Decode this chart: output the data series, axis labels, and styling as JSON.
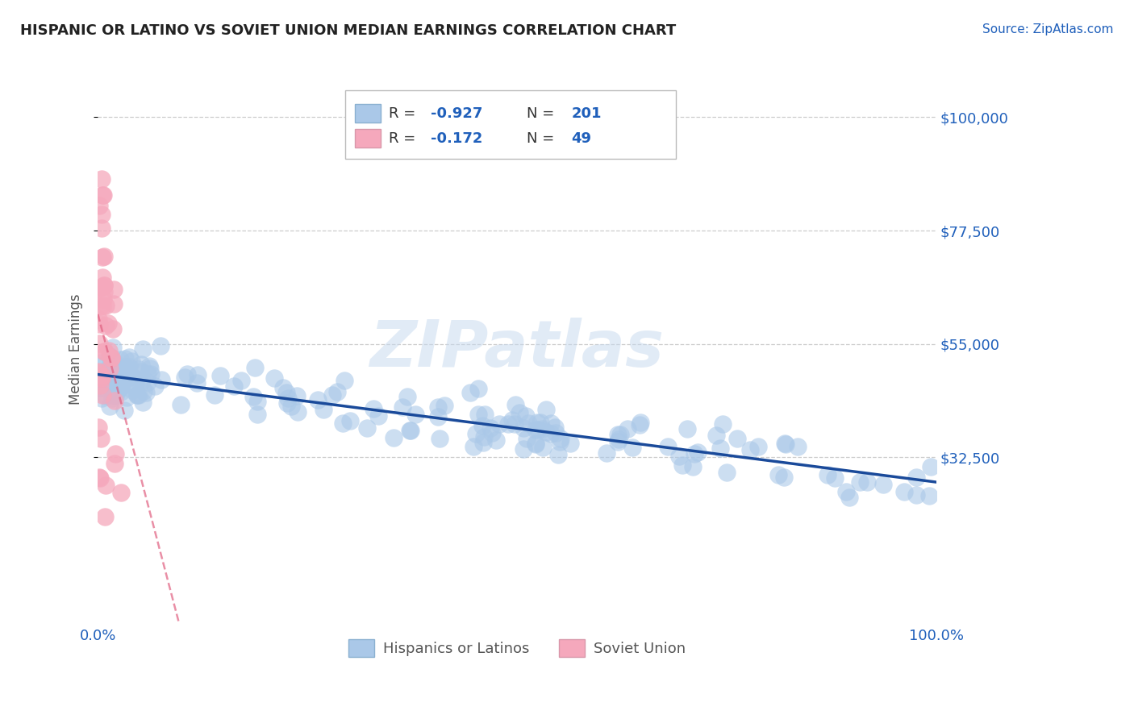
{
  "title": "HISPANIC OR LATINO VS SOVIET UNION MEDIAN EARNINGS CORRELATION CHART",
  "source": "Source: ZipAtlas.com",
  "ylabel": "Median Earnings",
  "blue_R": -0.927,
  "blue_N": 201,
  "pink_R": -0.172,
  "pink_N": 49,
  "blue_scatter_color": "#aac8e8",
  "blue_line_color": "#1a4a9a",
  "pink_scatter_color": "#f5a8bc",
  "pink_line_color": "#e06080",
  "text_color": "#2060bb",
  "title_color": "#222222",
  "legend_label_blue": "Hispanics or Latinos",
  "legend_label_pink": "Soviet Union",
  "ylim": [
    0,
    108000
  ],
  "xlim": [
    0.0,
    1.0
  ],
  "yticks": [
    32500,
    55000,
    77500,
    100000
  ],
  "ytick_labels": [
    "$32,500",
    "$55,000",
    "$77,500",
    "$100,000"
  ],
  "xtick_labels": [
    "0.0%",
    "100.0%"
  ],
  "grid_color": "#cccccc",
  "watermark_color": "#c5d8ee"
}
